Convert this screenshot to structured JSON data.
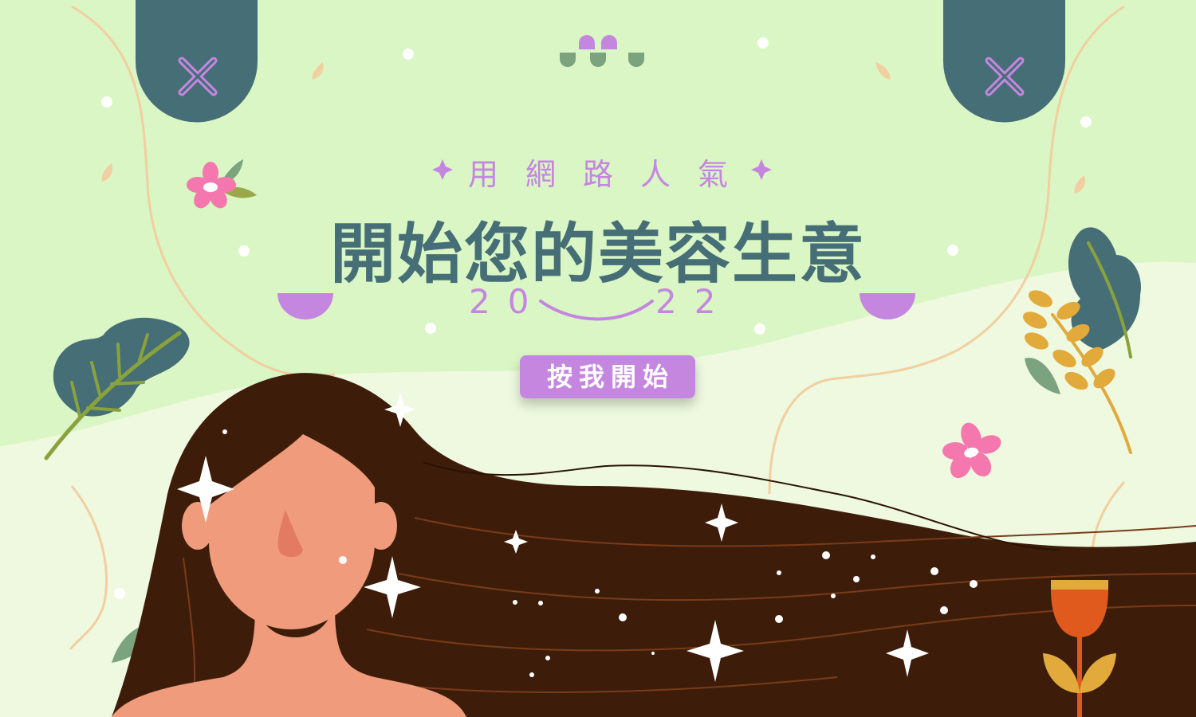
{
  "banner": {
    "subtitle": "用網路人氣",
    "title": "開始您的美容生意",
    "year_left": "20",
    "year_right": "22",
    "cta_label": "按我開始"
  },
  "colors": {
    "background": "#d9f6c4",
    "wave_light": "#eef9df",
    "teal": "#456e76",
    "purple": "#c586e0",
    "title_text": "#456e76",
    "hair": "#3d1d0a",
    "skin": "#f09c7c",
    "pink_flower": "#f478ae",
    "orange_flower": "#e05a1e",
    "yellow_leaf": "#e2a93b",
    "green_leaf": "#7ba37e",
    "stem": "#8aa23e"
  },
  "icons": [
    "close-icon",
    "close-icon",
    "sparkle-icon",
    "flower-icon",
    "leaf-icon",
    "star-icon",
    "tulip-icon"
  ]
}
